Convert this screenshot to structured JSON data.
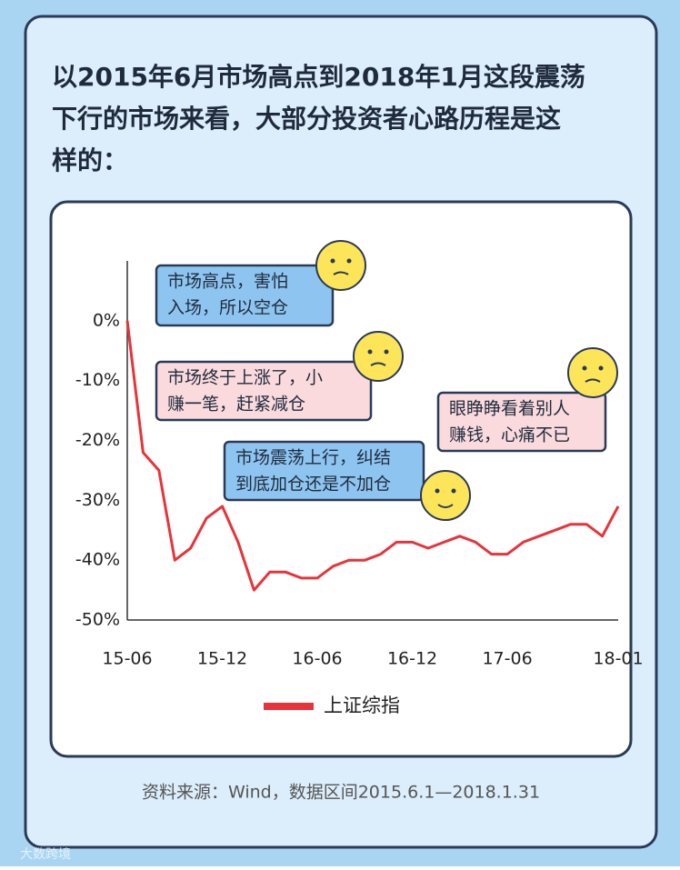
{
  "title": [
    "以2015年6月市场高点到2018年1月这段震荡",
    "下行的市场来看，大部分投资者心路历程是这",
    "样的："
  ],
  "chart_data": {
    "type": "line",
    "categories": [
      "15-06",
      null,
      null,
      null,
      null,
      null,
      "15-12",
      null,
      null,
      null,
      null,
      null,
      "16-06",
      null,
      null,
      null,
      null,
      null,
      "16-12",
      null,
      null,
      null,
      null,
      null,
      "17-06",
      null,
      null,
      null,
      null,
      null,
      null,
      "18-01"
    ],
    "series": [
      {
        "name": "上证综指",
        "color": "#e8333a",
        "values": [
          0,
          -22,
          -25,
          -40,
          -38,
          -33,
          -31,
          -37,
          -45,
          -42,
          -42,
          -43,
          -43,
          -41,
          -40,
          -40,
          -39,
          -37,
          -37,
          -38,
          -37,
          -36,
          -37,
          -39,
          -39,
          -37,
          -36,
          -35,
          -34,
          -34,
          -36,
          -31
        ]
      }
    ],
    "ylim": [
      -50,
      10
    ],
    "yticks": [
      {
        "value": 0,
        "label": "0%"
      },
      {
        "value": -10,
        "label": "-10%"
      },
      {
        "value": -20,
        "label": "-20%"
      },
      {
        "value": -30,
        "label": "-30%"
      },
      {
        "value": -40,
        "label": "-40%"
      },
      {
        "value": -50,
        "label": "-50%"
      }
    ],
    "legend": "bottom",
    "annotations": [
      {
        "lines": [
          "市场高点，害怕",
          "入场，所以空仓"
        ],
        "color": "#8ec5f0"
      },
      {
        "lines": [
          "市场终于上涨了，小",
          "赚一笔，赶紧减仓"
        ],
        "color": "#fadadd"
      },
      {
        "lines": [
          "市场震荡上行，纠结",
          "到底加仓还是不加仓"
        ],
        "color": "#8ec5f0"
      },
      {
        "lines": [
          "眼睁睁看着别人",
          "赚钱，心痛不已"
        ],
        "color": "#fadadd"
      }
    ]
  },
  "source": "资料来源：Wind，数据区间2015.6.1—2018.1.31",
  "watermark": "大数跨境"
}
